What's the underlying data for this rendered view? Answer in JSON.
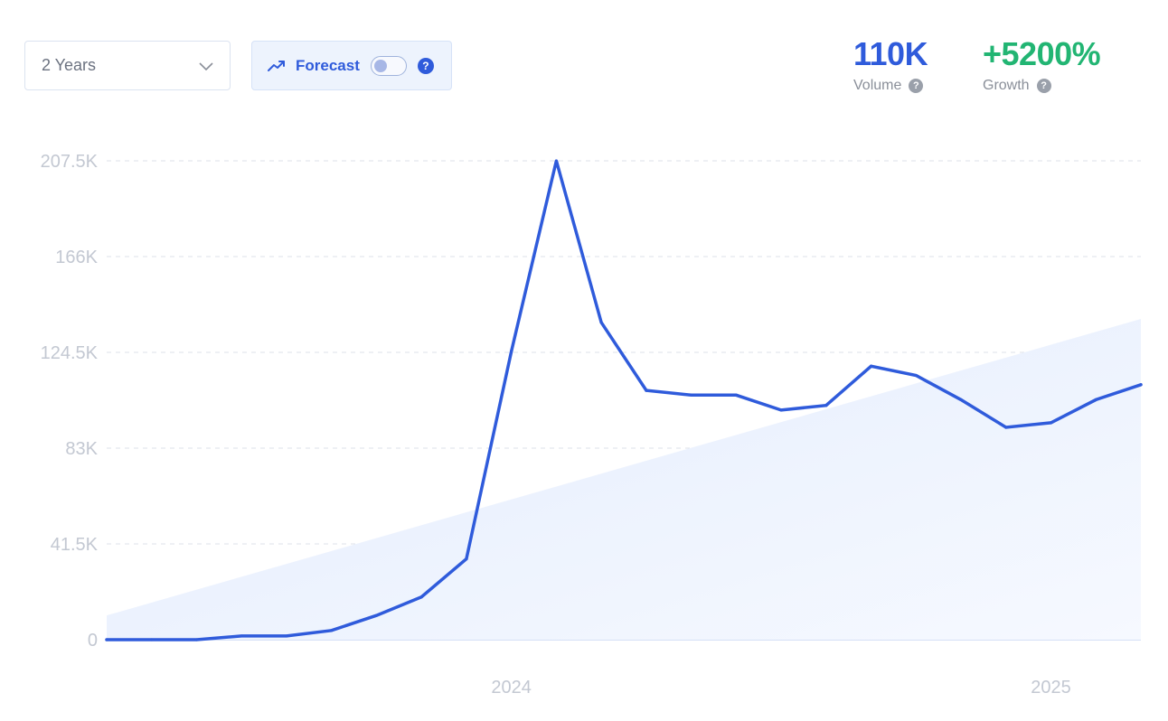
{
  "controls": {
    "range_label": "2 Years",
    "forecast_label": "Forecast",
    "forecast_enabled": false,
    "help_glyph": "?"
  },
  "stats": {
    "volume_value": "110K",
    "volume_label": "Volume",
    "growth_value": "+5200%",
    "growth_label": "Growth"
  },
  "colors": {
    "line": "#2f5bdb",
    "trend_fill": "#e6efff",
    "grid": "#dde2ea",
    "tick": "#c3c8d2",
    "growth": "#22b573"
  },
  "icons": {
    "range": "chevron-down-icon",
    "forecast": "trending-up-icon",
    "help": "question-circle-icon"
  },
  "chart_data": {
    "type": "line",
    "y_ticks": [
      0,
      41500,
      83000,
      124500,
      166000,
      207500
    ],
    "y_tick_labels": [
      "0",
      "41.5K",
      "83K",
      "124.5K",
      "166K",
      "207.5K"
    ],
    "ylim": [
      0,
      207500
    ],
    "x_ticks": [
      {
        "label": "2024",
        "index": 9
      },
      {
        "label": "2025",
        "index": 21
      }
    ],
    "grid": "horizontal dashed",
    "series": [
      {
        "values": [
          0,
          0,
          0,
          1600,
          1600,
          4000,
          10500,
          18500,
          35000,
          125000,
          207500,
          137500,
          108000,
          106000,
          106000,
          99500,
          101500,
          118500,
          114500,
          104000,
          92000,
          94000,
          104000,
          110500
        ]
      }
    ],
    "trend": {
      "start": 10500,
      "end": 139000
    }
  }
}
